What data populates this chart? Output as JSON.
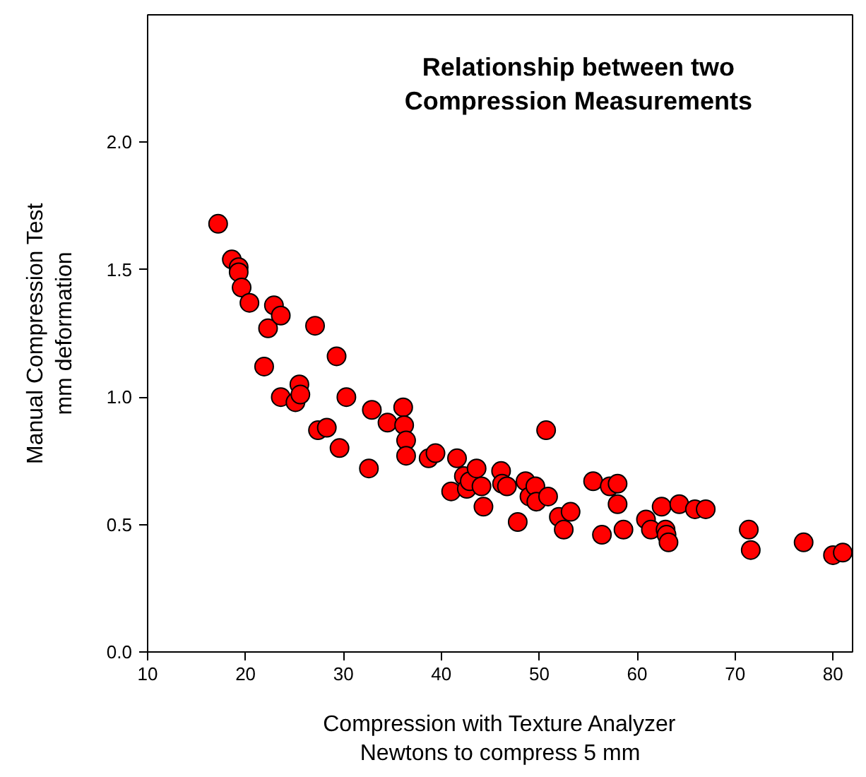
{
  "chart_data": {
    "type": "scatter",
    "title": "Relationship between two\nCompression Measurements",
    "xlabel": "Compression with Texture Analyzer\nNewtons to compress 5 mm",
    "ylabel": "Manual Compression Test\nmm deformation",
    "xlim": [
      10,
      82
    ],
    "xticks": [
      10,
      20,
      30,
      40,
      50,
      60,
      70,
      80
    ],
    "ylim": [
      0,
      2.5
    ],
    "yticks": [
      {
        "value": 0,
        "label": "0.0"
      },
      {
        "value": 0.5,
        "label": "0.5"
      },
      {
        "value": 1,
        "label": "1.0"
      },
      {
        "value": 1.5,
        "label": "1.5"
      },
      {
        "value": 2,
        "label": "2.0"
      }
    ],
    "grid": false,
    "marker": "circle",
    "series": [
      {
        "color": "#ff0000",
        "x": [
          17.2,
          18.6,
          19.3,
          19.3,
          19.6,
          20.4,
          21.9,
          22.3,
          22.9,
          23.6,
          23.6,
          25.1,
          25.5,
          25.6,
          27.1,
          27.4,
          28.3,
          29.3,
          29.6,
          30.3,
          32.6,
          32.9,
          34.5,
          36.1,
          36.2,
          36.4,
          36.4,
          38.7,
          39.4,
          41.0,
          41.6,
          42.3,
          42.6,
          42.9,
          43.6,
          44.1,
          44.3,
          46.1,
          46.2,
          46.7,
          47.8,
          48.6,
          49.0,
          49.6,
          49.7,
          50.7,
          50.9,
          52.0,
          52.5,
          53.2,
          55.5,
          56.4,
          57.2,
          58.0,
          58.0,
          58.6,
          60.9,
          61.4,
          62.5,
          62.9,
          63.0,
          63.2,
          64.3,
          65.9,
          67.0,
          71.4,
          71.6,
          77.0,
          80.0,
          81.0
        ],
        "values": [
          1.68,
          1.54,
          1.51,
          1.49,
          1.43,
          1.37,
          1.12,
          1.27,
          1.36,
          1.32,
          1.0,
          0.98,
          1.05,
          1.01,
          1.28,
          0.87,
          0.88,
          1.16,
          0.8,
          1.0,
          0.72,
          0.95,
          0.9,
          0.96,
          0.89,
          0.83,
          0.77,
          0.76,
          0.78,
          0.63,
          0.76,
          0.69,
          0.64,
          0.67,
          0.72,
          0.65,
          0.57,
          0.71,
          0.66,
          0.65,
          0.51,
          0.67,
          0.61,
          0.65,
          0.59,
          0.87,
          0.61,
          0.53,
          0.48,
          0.55,
          0.67,
          0.46,
          0.65,
          0.66,
          0.58,
          0.48,
          0.52,
          0.48,
          0.57,
          0.48,
          0.46,
          0.43,
          0.58,
          0.56,
          0.56,
          0.48,
          0.4,
          0.43,
          0.38,
          0.39
        ]
      }
    ]
  }
}
